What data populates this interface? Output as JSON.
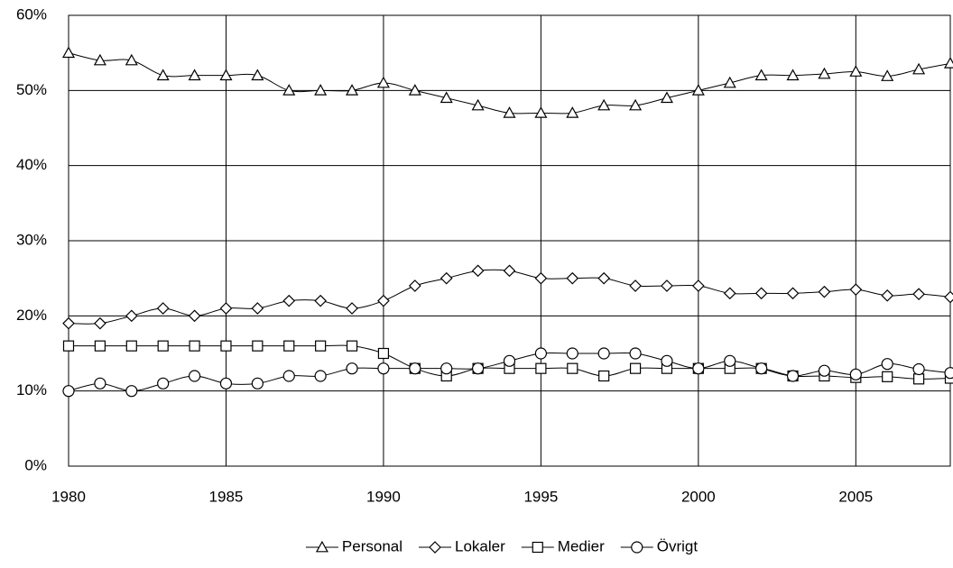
{
  "chart_data": {
    "type": "line",
    "x": [
      1980,
      1981,
      1982,
      1983,
      1984,
      1985,
      1986,
      1987,
      1988,
      1989,
      1990,
      1991,
      1992,
      1993,
      1994,
      1995,
      1996,
      1997,
      1998,
      1999,
      2000,
      2001,
      2002,
      2003,
      2004,
      2005,
      2006,
      2007,
      2008
    ],
    "series": [
      {
        "name": "Personal",
        "color": "#000000",
        "marker": "triangle",
        "values": [
          55,
          54,
          54,
          52,
          52,
          52,
          52,
          50,
          50,
          50,
          51,
          50,
          49,
          48,
          47,
          47,
          47,
          48,
          48,
          49,
          50,
          51,
          52,
          52,
          52.2,
          52.5,
          51.9,
          52.8,
          53.6
        ]
      },
      {
        "name": "Lokaler",
        "color": "#000000",
        "marker": "diamond",
        "values": [
          19,
          19,
          20,
          21,
          20,
          21,
          21,
          22,
          22,
          21,
          22,
          24,
          25,
          26,
          26,
          25,
          25,
          25,
          24,
          24,
          24,
          23,
          23,
          23,
          23.2,
          23.5,
          22.7,
          22.9,
          22.5
        ]
      },
      {
        "name": "Medier",
        "color": "#000000",
        "marker": "square",
        "values": [
          16,
          16,
          16,
          16,
          16,
          16,
          16,
          16,
          16,
          16,
          15,
          13,
          12,
          13,
          13,
          13,
          13,
          12,
          13,
          13,
          13,
          13,
          13,
          12,
          12,
          11.8,
          11.9,
          11.6,
          11.7
        ]
      },
      {
        "name": "Övrigt",
        "color": "#000000",
        "marker": "circle",
        "values": [
          10,
          11,
          10,
          11,
          12,
          11,
          11,
          12,
          12,
          13,
          13,
          13,
          13,
          13,
          14,
          15,
          15,
          15,
          15,
          14,
          13,
          14,
          13,
          12,
          12.7,
          12.2,
          13.6,
          12.9,
          12.4
        ]
      }
    ],
    "xlim": [
      1980,
      2008
    ],
    "xticks": [
      1980,
      1985,
      1990,
      1995,
      2000,
      2005
    ],
    "ylim": [
      0,
      60
    ],
    "yticks": [
      {
        "value": 0,
        "label": "0%"
      },
      {
        "value": 10,
        "label": "10%"
      },
      {
        "value": 20,
        "label": "20%"
      },
      {
        "value": 30,
        "label": "30%"
      },
      {
        "value": 40,
        "label": "40%"
      },
      {
        "value": 50,
        "label": "50%"
      },
      {
        "value": 60,
        "label": "60%"
      }
    ],
    "grid": true,
    "legend": "bottom"
  }
}
